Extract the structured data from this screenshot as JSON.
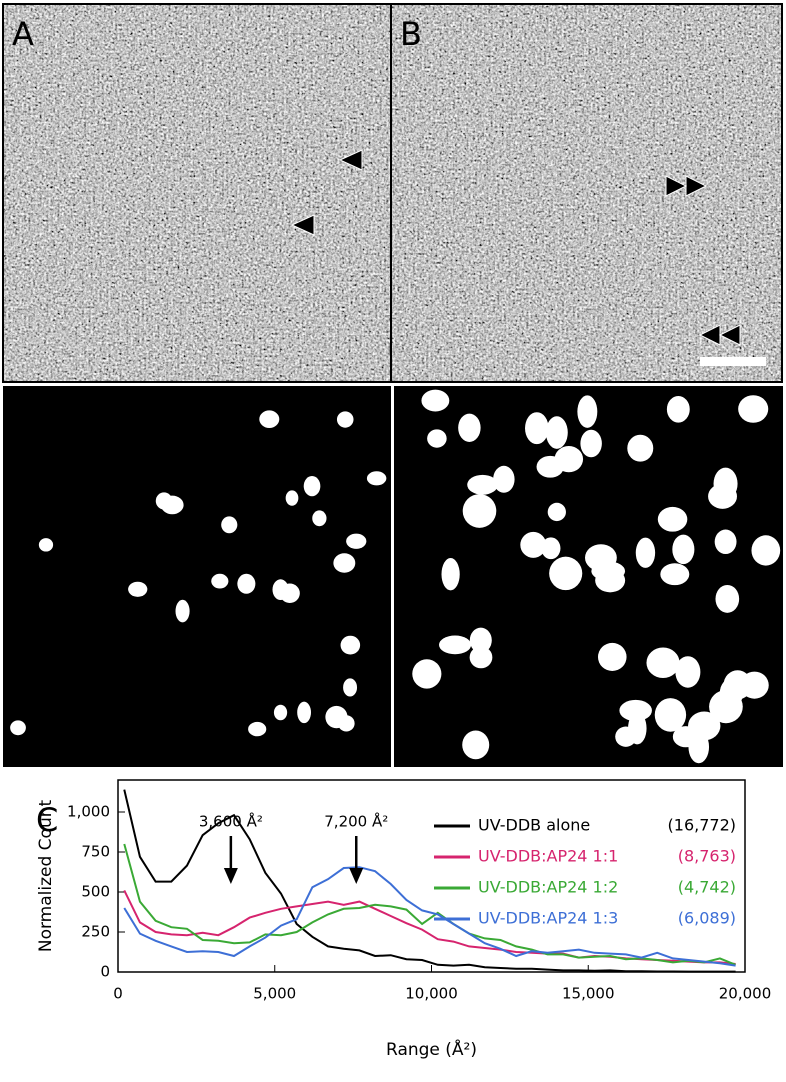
{
  "panel_labels": [
    "A",
    "B",
    "C"
  ],
  "chart_data": {
    "type": "line",
    "xlabel": "Range (Å²)",
    "ylabel": "Normalized Count",
    "annotations": [
      {
        "text": "3,600 Å²",
        "x": 3600
      },
      {
        "text": "7,200 Å²",
        "x": 7600
      }
    ],
    "x": [
      200,
      700,
      1200,
      1700,
      2200,
      2700,
      3200,
      3700,
      4200,
      4700,
      5200,
      5700,
      6200,
      6700,
      7200,
      7700,
      8200,
      8700,
      9200,
      9700,
      10200,
      10700,
      11200,
      11700,
      12200,
      12700,
      13200,
      13700,
      14200,
      14700,
      15200,
      15700,
      16200,
      16700,
      17200,
      17700,
      18200,
      18700,
      19200,
      19700
    ],
    "series": [
      {
        "name": "UV-DDB alone",
        "count_label": "(16,772)",
        "color": "#000000",
        "values": [
          1140,
          720,
          565,
          565,
          665,
          855,
          930,
          980,
          830,
          620,
          490,
          300,
          220,
          160,
          145,
          135,
          100,
          105,
          80,
          75,
          45,
          40,
          45,
          30,
          25,
          20,
          20,
          15,
          10,
          10,
          8,
          10,
          5,
          5,
          3,
          3,
          2,
          2,
          2,
          2
        ]
      },
      {
        "name": "UV-DDB:AP24 1:1",
        "count_label": "(8,763)",
        "color": "#d6246e",
        "values": [
          510,
          310,
          250,
          235,
          230,
          245,
          230,
          280,
          340,
          370,
          395,
          410,
          425,
          440,
          420,
          440,
          395,
          350,
          305,
          265,
          205,
          190,
          160,
          150,
          140,
          125,
          120,
          115,
          115,
          90,
          100,
          95,
          85,
          80,
          75,
          70,
          65,
          60,
          60,
          50
        ]
      },
      {
        "name": "UV-DDB:AP24 1:2",
        "count_label": "(4,742)",
        "color": "#3aa935",
        "values": [
          800,
          440,
          320,
          280,
          270,
          200,
          195,
          180,
          185,
          235,
          230,
          250,
          310,
          360,
          395,
          400,
          420,
          410,
          390,
          300,
          370,
          300,
          240,
          210,
          200,
          160,
          140,
          110,
          110,
          90,
          95,
          100,
          80,
          85,
          75,
          60,
          70,
          60,
          85,
          45
        ]
      },
      {
        "name": "UV-DDB:AP24 1:3",
        "count_label": "(6,089)",
        "color": "#3d6fd6",
        "values": [
          400,
          240,
          195,
          160,
          125,
          130,
          125,
          100,
          160,
          215,
          290,
          330,
          530,
          580,
          650,
          655,
          630,
          550,
          450,
          385,
          360,
          300,
          240,
          180,
          145,
          100,
          130,
          120,
          130,
          140,
          120,
          115,
          110,
          90,
          120,
          85,
          75,
          65,
          55,
          40
        ]
      }
    ],
    "xlim": [
      0,
      20000
    ],
    "ylim": [
      0,
      1200
    ],
    "xticks": [
      0,
      {
        "value": 5000,
        "label": "5,000"
      },
      {
        "value": 10000,
        "label": "10,000"
      },
      {
        "value": 15000,
        "label": "15,000"
      },
      {
        "value": 20000,
        "label": "20,000"
      }
    ],
    "yticks": [
      0,
      250,
      500,
      750,
      {
        "value": 1000,
        "label": "1,000"
      }
    ]
  }
}
